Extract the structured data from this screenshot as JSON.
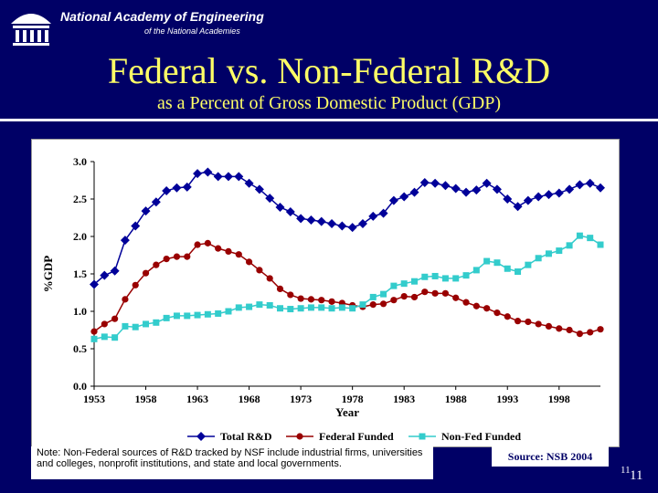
{
  "header": {
    "org_name": "National Academy of Engineering",
    "org_sub": "of the National Academies",
    "title": "Federal vs. Non-Federal R&D",
    "subtitle": "as a Percent of Gross Domestic Product (GDP)"
  },
  "note": "Note: Non-Federal sources of R&D tracked by NSF include industrial firms, universities and colleges, nonprofit institutions, and state and local governments.",
  "source": "Source: NSB 2004",
  "page_number": "11",
  "colors": {
    "background": "#000066",
    "title": "#ffff66",
    "total": "#000099",
    "federal": "#990000",
    "nonfed": "#33cccc"
  },
  "chart_data": {
    "type": "line",
    "title": "",
    "xlabel": "Year",
    "ylabel": "%GDP",
    "ylim": [
      0,
      3
    ],
    "xlim": [
      1953,
      2002
    ],
    "grid": false,
    "legend_position": "bottom",
    "y_ticks": [
      "0.0",
      "0.5",
      "1.0",
      "1.5",
      "2.0",
      "2.5",
      "3.0"
    ],
    "x_ticks": [
      "1953",
      "1958",
      "1963",
      "1968",
      "1973",
      "1978",
      "1983",
      "1988",
      "1993",
      "1998"
    ],
    "x": [
      1953,
      1954,
      1955,
      1956,
      1957,
      1958,
      1959,
      1960,
      1961,
      1962,
      1963,
      1964,
      1965,
      1966,
      1967,
      1968,
      1969,
      1970,
      1971,
      1972,
      1973,
      1974,
      1975,
      1976,
      1977,
      1978,
      1979,
      1980,
      1981,
      1982,
      1983,
      1984,
      1985,
      1986,
      1987,
      1988,
      1989,
      1990,
      1991,
      1992,
      1993,
      1994,
      1995,
      1996,
      1997,
      1998,
      1999,
      2000,
      2001,
      2002
    ],
    "series": [
      {
        "name": "Total R&D",
        "values": [
          1.36,
          1.48,
          1.54,
          1.95,
          2.14,
          2.34,
          2.46,
          2.61,
          2.65,
          2.66,
          2.84,
          2.86,
          2.8,
          2.8,
          2.8,
          2.71,
          2.63,
          2.51,
          2.39,
          2.33,
          2.24,
          2.22,
          2.2,
          2.17,
          2.14,
          2.12,
          2.17,
          2.27,
          2.31,
          2.48,
          2.53,
          2.59,
          2.72,
          2.71,
          2.68,
          2.64,
          2.59,
          2.62,
          2.71,
          2.63,
          2.5,
          2.4,
          2.48,
          2.53,
          2.56,
          2.58,
          2.63,
          2.69,
          2.71,
          2.65
        ]
      },
      {
        "name": "Federal Funded",
        "values": [
          0.73,
          0.83,
          0.9,
          1.16,
          1.35,
          1.51,
          1.62,
          1.7,
          1.73,
          1.73,
          1.89,
          1.91,
          1.84,
          1.8,
          1.76,
          1.66,
          1.55,
          1.44,
          1.3,
          1.22,
          1.17,
          1.16,
          1.15,
          1.13,
          1.11,
          1.08,
          1.06,
          1.09,
          1.1,
          1.15,
          1.2,
          1.19,
          1.26,
          1.24,
          1.24,
          1.18,
          1.12,
          1.07,
          1.04,
          0.98,
          0.93,
          0.87,
          0.86,
          0.83,
          0.8,
          0.77,
          0.75,
          0.7,
          0.72,
          0.76
        ]
      },
      {
        "name": "Non-Fed Funded",
        "values": [
          0.63,
          0.66,
          0.65,
          0.8,
          0.79,
          0.83,
          0.85,
          0.91,
          0.94,
          0.94,
          0.95,
          0.96,
          0.97,
          1.0,
          1.05,
          1.06,
          1.09,
          1.08,
          1.04,
          1.03,
          1.04,
          1.05,
          1.05,
          1.04,
          1.05,
          1.04,
          1.09,
          1.19,
          1.23,
          1.34,
          1.37,
          1.4,
          1.46,
          1.47,
          1.44,
          1.44,
          1.48,
          1.55,
          1.67,
          1.65,
          1.57,
          1.53,
          1.62,
          1.71,
          1.77,
          1.81,
          1.88,
          2.01,
          1.98,
          1.89
        ]
      }
    ]
  }
}
